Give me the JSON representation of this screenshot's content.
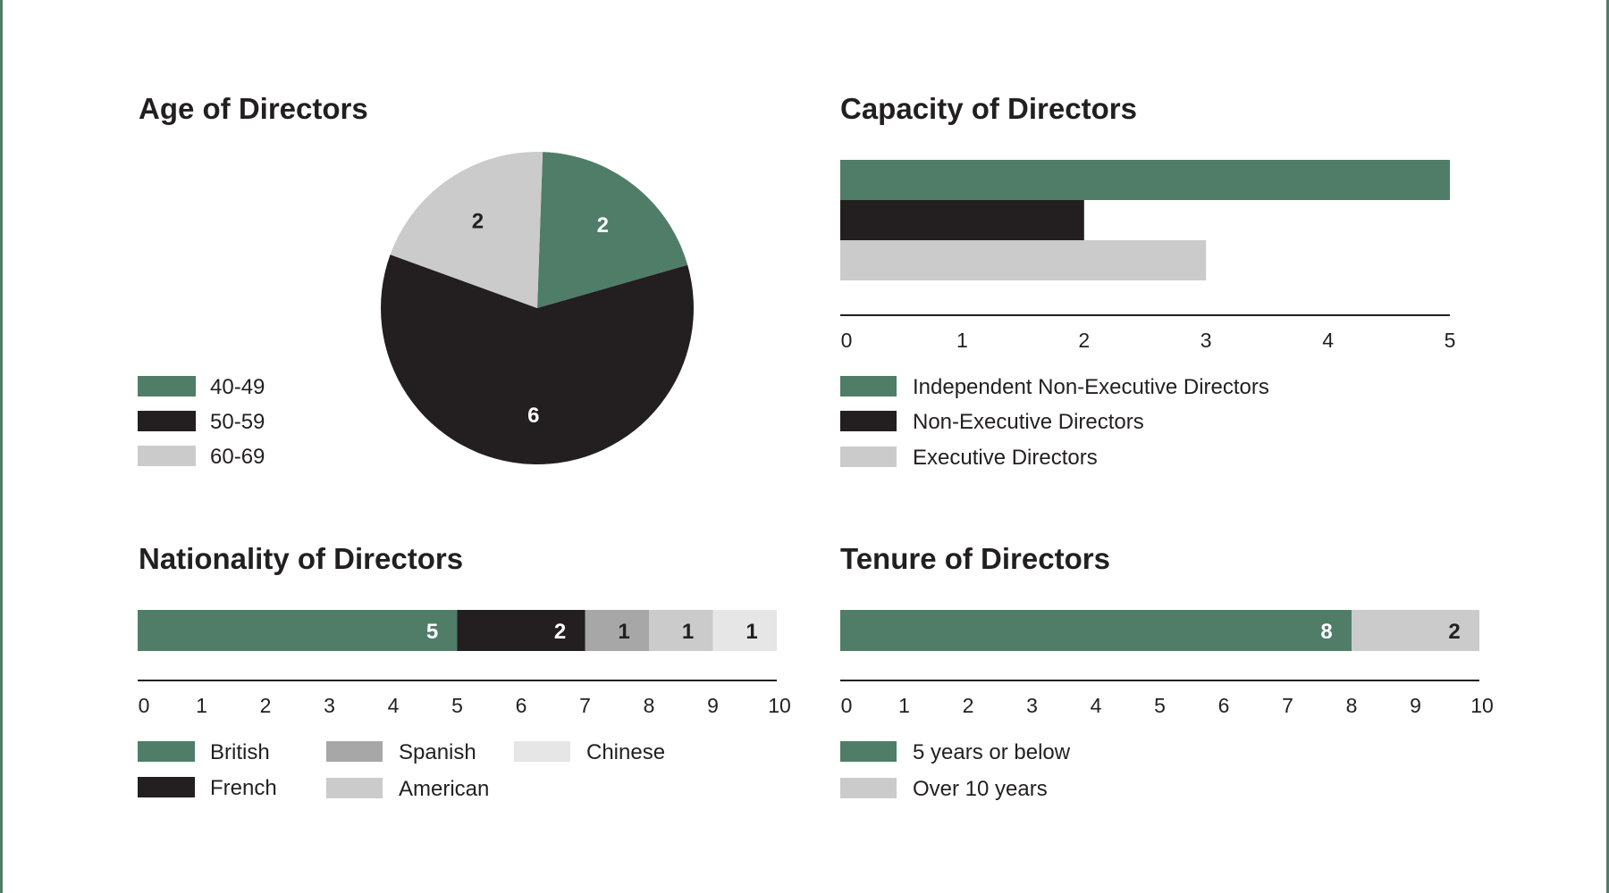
{
  "colors": {
    "green": "#4f7d68",
    "black": "#231f20",
    "grey_light": "#cbcbcb",
    "grey_mid": "#a7a7a7",
    "grey_pale": "#e6e6e6",
    "axis": "#231f20"
  },
  "chart_data": [
    {
      "id": "age",
      "type": "pie",
      "title": "Age of Directors",
      "categories": [
        "40-49",
        "50-59",
        "60-69"
      ],
      "values": [
        2,
        6,
        2
      ],
      "colors": [
        "#4f7d68",
        "#231f20",
        "#cbcbcb"
      ],
      "legend_position": "left"
    },
    {
      "id": "capacity",
      "type": "bar",
      "orientation": "horizontal",
      "title": "Capacity of Directors",
      "categories": [
        "Independent Non-Executive Directors",
        "Non-Executive Directors",
        "Executive Directors"
      ],
      "values": [
        5,
        2,
        3
      ],
      "colors": [
        "#4f7d68",
        "#231f20",
        "#cbcbcb"
      ],
      "xlim": [
        0,
        5
      ],
      "xticks": [
        "0",
        "1",
        "2",
        "3",
        "4",
        "5"
      ],
      "legend_position": "bottom"
    },
    {
      "id": "nationality",
      "type": "bar",
      "orientation": "horizontal",
      "stacked": true,
      "title": "Nationality of Directors",
      "categories": [
        "British",
        "French",
        "Spanish",
        "American",
        "Chinese"
      ],
      "values": [
        5,
        2,
        1,
        1,
        1
      ],
      "data_labels": [
        "5",
        "2",
        "1",
        "1",
        "1"
      ],
      "colors": [
        "#4f7d68",
        "#231f20",
        "#a7a7a7",
        "#cbcbcb",
        "#e6e6e6"
      ],
      "xlim": [
        0,
        10
      ],
      "xticks": [
        "0",
        "1",
        "2",
        "3",
        "4",
        "5",
        "6",
        "7",
        "8",
        "9",
        "10"
      ],
      "legend_position": "bottom"
    },
    {
      "id": "tenure",
      "type": "bar",
      "orientation": "horizontal",
      "stacked": true,
      "title": "Tenure of Directors",
      "categories": [
        "5 years or below",
        "Over 10 years"
      ],
      "values": [
        8,
        2
      ],
      "data_labels": [
        "8",
        "2"
      ],
      "colors": [
        "#4f7d68",
        "#cbcbcb"
      ],
      "xlim": [
        0,
        10
      ],
      "xticks": [
        "0",
        "1",
        "2",
        "3",
        "4",
        "5",
        "6",
        "7",
        "8",
        "9",
        "10"
      ],
      "legend_position": "bottom"
    }
  ]
}
